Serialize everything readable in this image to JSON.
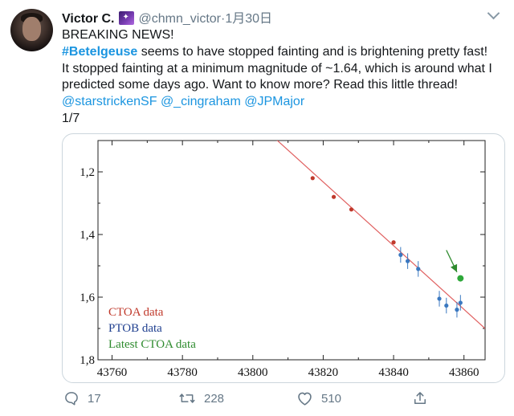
{
  "user": {
    "display_name": "Victor C.",
    "badge_icon": "galaxy-emoji-icon",
    "handle": "@chmn_victor",
    "separator": "·",
    "date": "1月30日"
  },
  "tweet": {
    "line1": "BREAKING NEWS!",
    "hashtag": "#Betelgeuse",
    "line2_rest": " seems to have stopped fainting and is brightening pretty fast!",
    "line3": "It stopped fainting at a minimum magnitude of ~1.64, which is around what I",
    "line4": "predicted some days ago. Want to know more? Read this little thread!",
    "mentions": [
      "@starstrickenSF",
      "@_cingraham",
      "@JPMajor"
    ],
    "thread_counter": "1/7"
  },
  "chart_data": {
    "type": "scatter",
    "x_ticks": [
      "43760",
      "43780",
      "43800",
      "43820",
      "43840",
      "43860"
    ],
    "y_ticks": [
      "1,2",
      "1,4",
      "1,6",
      "1,8"
    ],
    "xlim": [
      43756,
      43866
    ],
    "ylim": [
      1.8,
      1.1
    ],
    "y_inverted": true,
    "grid": false,
    "legend_position": "bottom-left",
    "legend": [
      {
        "label": "CTOA data",
        "color": "#c0392b"
      },
      {
        "label": "PTOB data",
        "color": "#1f3f8f"
      },
      {
        "label": "Latest CTOA data",
        "color": "#2e8b2e"
      }
    ],
    "trend_line": {
      "color": "#e06060",
      "points": [
        [
          43806,
          1.09
        ],
        [
          43866,
          1.7
        ]
      ]
    },
    "series": [
      {
        "color": "#c0392b",
        "error": 0.005,
        "points": [
          [
            43817,
            1.22
          ],
          [
            43823,
            1.28
          ],
          [
            43828,
            1.32
          ],
          [
            43840,
            1.425
          ]
        ]
      },
      {
        "color": "#3a78c0",
        "error": 0.025,
        "points": [
          [
            43842,
            1.465
          ],
          [
            43844,
            1.485
          ],
          [
            43847,
            1.51
          ],
          [
            43853,
            1.605
          ],
          [
            43855,
            1.627
          ],
          [
            43858,
            1.64
          ],
          [
            43859,
            1.618
          ]
        ]
      },
      {
        "color": "#2ea83a",
        "error": 0,
        "points": [
          [
            43859,
            1.54
          ]
        ]
      }
    ],
    "annotation_arrow": {
      "color": "#2e8b2e",
      "from": [
        43855,
        1.45
      ],
      "to": [
        43858,
        1.52
      ]
    }
  },
  "actions": {
    "replies": "17",
    "retweets": "228",
    "likes": "510"
  }
}
